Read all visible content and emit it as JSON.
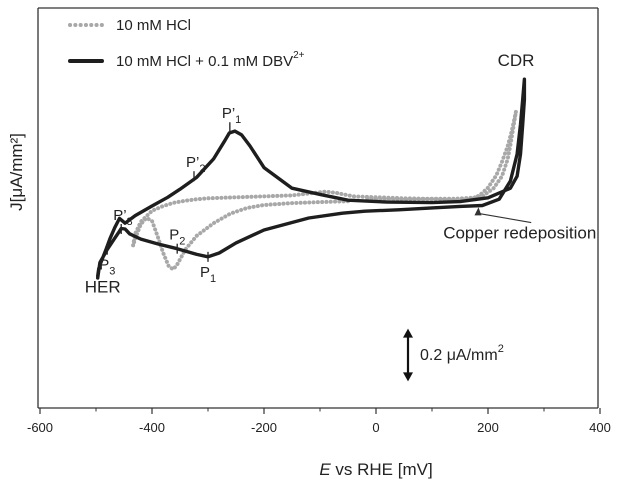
{
  "chart_data": {
    "type": "line",
    "title": "",
    "xlabel_italic": "E",
    "xlabel_rest": " vs RHE [mV]",
    "ylabel": "J[μA/mm²]",
    "xlim": [
      -600,
      400
    ],
    "x_ticks": [
      -600,
      -400,
      -200,
      0,
      200,
      400
    ],
    "x_tick_labels": [
      "-600",
      "-400",
      "-200",
      "0",
      "200",
      "400"
    ],
    "legend": [
      {
        "label": "10 mM HCl",
        "style": "dotted",
        "color": "#a8a8a8"
      },
      {
        "label": "10 mM HCl  + 0.1 mM DBV",
        "superscript": "2+",
        "style": "solid",
        "color": "#1e1e1e"
      }
    ],
    "scale_bar": {
      "value": 0.2,
      "label": "0.2 μA/mm",
      "superscript": "2"
    },
    "y_units_note": "relative current, units of scale bar (0.2 μA/mm² = 1.0)",
    "series": [
      {
        "name": "10 mM HCl",
        "style": "dotted",
        "color": "#a8a8a8",
        "x": [
          -50,
          -100,
          -150,
          -200,
          -230,
          -260,
          -290,
          -320,
          -340,
          -355,
          -362,
          -370,
          -380,
          -390,
          -400,
          -410,
          -420,
          -430,
          -434,
          -430,
          -420,
          -400,
          -380,
          -360,
          -340,
          -320,
          -300,
          -250,
          -150,
          -90,
          -70,
          -40,
          50,
          120,
          150,
          170,
          185,
          200,
          215,
          225,
          235,
          242,
          248,
          250,
          245,
          240,
          235,
          225,
          210,
          190,
          170,
          140,
          100,
          50,
          0,
          -20
        ],
        "y": [
          0.08,
          0.06,
          0.04,
          0.0,
          -0.06,
          -0.18,
          -0.38,
          -0.64,
          -0.92,
          -1.24,
          -1.34,
          -1.28,
          -1.0,
          -0.65,
          -0.33,
          -0.27,
          -0.4,
          -0.7,
          -0.85,
          -0.6,
          -0.35,
          -0.12,
          -0.02,
          0.05,
          0.09,
          0.12,
          0.14,
          0.16,
          0.2,
          0.28,
          0.25,
          0.18,
          0.14,
          0.12,
          0.1,
          0.12,
          0.2,
          0.36,
          0.62,
          0.9,
          1.22,
          1.52,
          1.84,
          1.95,
          1.6,
          1.25,
          0.95,
          0.6,
          0.35,
          0.18,
          0.15,
          0.13,
          0.13,
          0.12,
          0.12,
          0.13
        ]
      },
      {
        "name": "10 mM HCl + 0.1 mM DBV2+",
        "style": "solid",
        "color": "#1e1e1e",
        "x": [
          -497,
          -493,
          -480,
          -467,
          -460,
          -455,
          -448,
          -440,
          -420,
          -390,
          -355,
          -320,
          -300,
          -280,
          -250,
          -200,
          -120,
          -60,
          -20,
          40,
          100,
          150,
          190,
          220,
          240,
          252,
          258,
          262,
          265,
          265,
          262,
          258,
          252,
          240,
          200,
          150,
          100,
          20,
          -50,
          -100,
          -150,
          -200,
          -225,
          -240,
          -252,
          -262,
          -270,
          -290,
          -320,
          -350,
          -372,
          -400,
          -430,
          -448,
          -458,
          -466,
          -475,
          -482,
          -490,
          -495,
          -497
        ],
        "y": [
          -1.52,
          -1.2,
          -0.93,
          -0.7,
          -0.58,
          -0.49,
          -0.5,
          -0.6,
          -0.71,
          -0.81,
          -0.91,
          -1.03,
          -1.08,
          -1.0,
          -0.79,
          -0.52,
          -0.27,
          -0.17,
          -0.13,
          -0.1,
          -0.06,
          -0.03,
          -0.01,
          0.12,
          0.5,
          1.06,
          1.68,
          2.2,
          2.62,
          2.2,
          1.68,
          1.06,
          0.6,
          0.35,
          0.15,
          0.07,
          0.05,
          0.06,
          0.1,
          0.22,
          0.35,
          0.78,
          1.23,
          1.46,
          1.54,
          1.5,
          1.34,
          0.96,
          0.58,
          0.33,
          0.16,
          -0.02,
          -0.22,
          -0.38,
          -0.28,
          -0.46,
          -0.7,
          -0.92,
          -1.16,
          -1.32,
          -1.48
        ]
      }
    ],
    "annotations": [
      {
        "text": "CDR",
        "x": 250,
        "y": 2.9
      },
      {
        "text": "HER",
        "x": -488,
        "y": -1.82
      },
      {
        "text": "Copper redeposition",
        "x": 120,
        "y": -0.7,
        "arrow_to": [
          183,
          -0.05
        ]
      },
      {
        "text": "P",
        "sub": "1",
        "prime": true,
        "x": -261,
        "y": 1.62,
        "label_pos": "above"
      },
      {
        "text": "P",
        "sub": "2",
        "prime": true,
        "x": -325,
        "y": 0.6,
        "label_pos": "above"
      },
      {
        "text": "P",
        "sub": "3",
        "prime": true,
        "x": -455,
        "y": -0.5,
        "label_pos": "above"
      },
      {
        "text": "P",
        "sub": "1",
        "prime": false,
        "x": -300,
        "y": -1.08,
        "label_pos": "below"
      },
      {
        "text": "P",
        "sub": "2",
        "prime": false,
        "x": -355,
        "y": -0.91,
        "label_pos": "above"
      },
      {
        "text": "P",
        "sub": "3",
        "prime": false,
        "x": -480,
        "y": -0.93,
        "label_pos": "below"
      }
    ]
  }
}
